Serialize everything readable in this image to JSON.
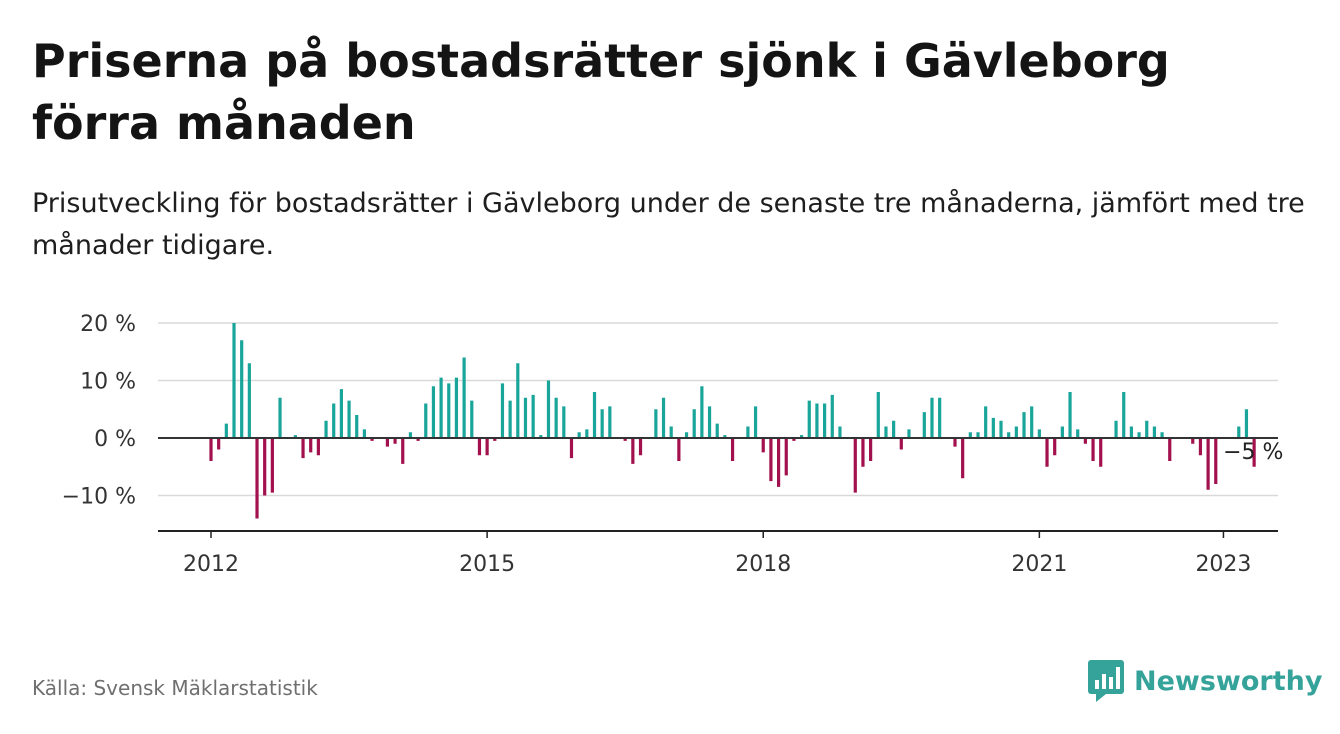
{
  "header": {
    "title": "Priserna på bostadsrätter sjönk i Gävleborg förra månaden",
    "subtitle": "Prisutveckling för bostadsrätter i Gävleborg under de senaste tre månaderna, jämfört med tre månader tidigare."
  },
  "footer": {
    "source": "Källa: Svensk Mäklarstatistik",
    "brand": "Newsworthy"
  },
  "colors": {
    "positive": "#1aa59a",
    "negative": "#a3104e",
    "brand": "#36a39a"
  },
  "chart_data": {
    "type": "bar",
    "title": "Priserna på bostadsrätter sjönk i Gävleborg förra månaden",
    "subtitle": "Prisutveckling för bostadsrätter i Gävleborg under de senaste tre månaderna, jämfört med tre månader tidigare.",
    "xlabel": "",
    "ylabel": "",
    "x_start": "2012-01",
    "x_ticks": [
      "2012",
      "2015",
      "2018",
      "2021",
      "2023"
    ],
    "y_ticks": [
      20,
      10,
      0,
      -10
    ],
    "y_tick_labels": [
      "20 %",
      "10 %",
      "0 %",
      "−10 %"
    ],
    "ylim": [
      -16,
      20
    ],
    "unit": "%",
    "grid": true,
    "end_label": "−5 %",
    "values": [
      -4,
      -2,
      2.5,
      20,
      17,
      13,
      -14,
      -10,
      -9.5,
      7,
      0,
      0.5,
      -3.5,
      -2.5,
      -3,
      3,
      6,
      8.5,
      6.5,
      4,
      1.5,
      -0.5,
      0,
      -1.5,
      -1,
      -4.5,
      1,
      -0.5,
      6,
      9,
      10.5,
      9.5,
      10.5,
      14,
      6.5,
      -3,
      -3,
      -0.5,
      9.5,
      6.5,
      13,
      7,
      7.5,
      0.5,
      10,
      7,
      5.5,
      -3.5,
      1,
      1.5,
      8,
      5,
      5.5,
      0,
      -0.5,
      -4.5,
      -3,
      0,
      5,
      7,
      2,
      -4,
      1,
      5,
      9,
      5.5,
      2.5,
      0.5,
      -4,
      0,
      2,
      5.5,
      -2.5,
      -7.5,
      -8.5,
      -6.5,
      -0.5,
      0.5,
      6.5,
      6,
      6,
      7.5,
      2,
      0,
      -9.5,
      -5,
      -4,
      8,
      2,
      3,
      -2,
      1.5,
      0,
      4.5,
      7,
      7,
      0,
      -1.5,
      -7,
      1,
      1,
      5.5,
      3.5,
      3,
      1,
      2,
      4.5,
      5.5,
      1.5,
      -5,
      -3,
      2,
      8,
      1.5,
      -1,
      -4,
      -5,
      0,
      3,
      8,
      2,
      1,
      3,
      2,
      1,
      -4,
      0,
      0,
      -1,
      -3,
      -9,
      -8,
      0,
      0,
      2,
      5,
      -5
    ]
  }
}
